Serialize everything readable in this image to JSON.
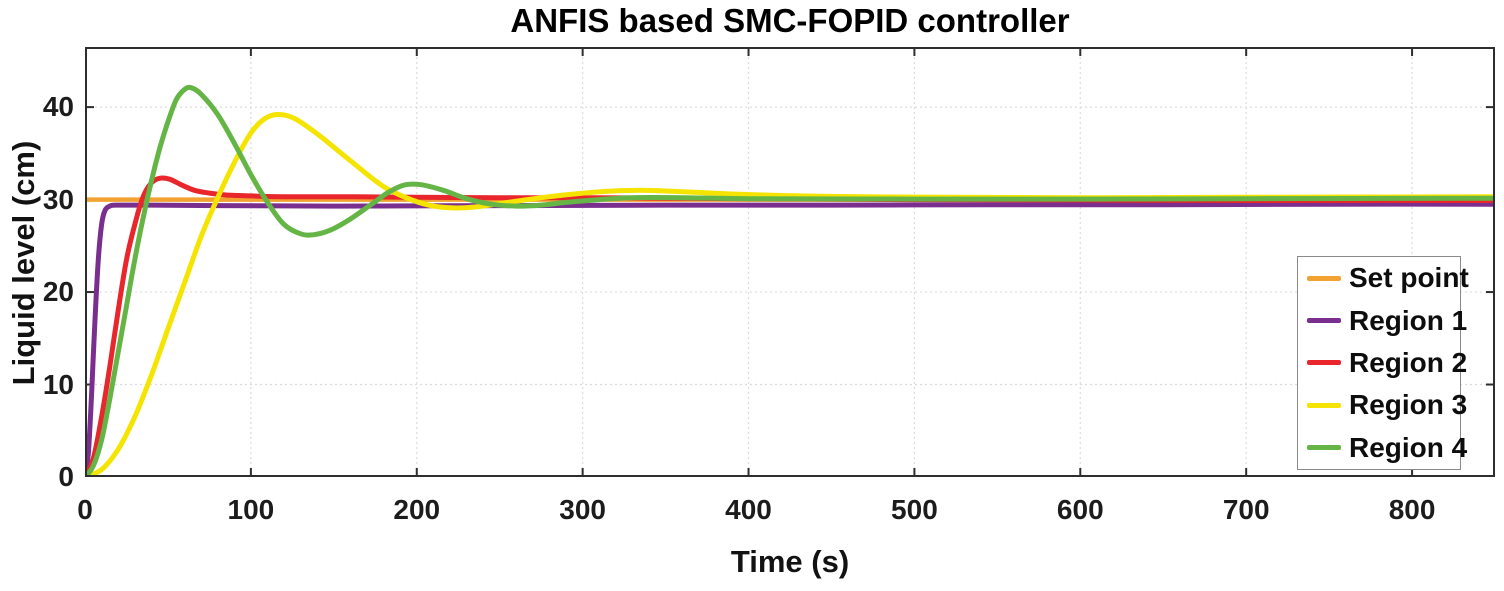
{
  "chart_data": {
    "type": "line",
    "title": "ANFIS based SMC-FOPID controller",
    "xlabel": "Time (s)",
    "ylabel": "Liquid level (cm)",
    "xlim": [
      0,
      850
    ],
    "ylim": [
      0,
      46.5
    ],
    "xticks": [
      0,
      100,
      200,
      300,
      400,
      500,
      600,
      700,
      800
    ],
    "yticks": [
      0,
      10,
      20,
      30,
      40
    ],
    "grid": true,
    "grid_color": "#dcdcdc",
    "axis_color": "#2e2e2e",
    "legend_position": "bottom-right",
    "series": [
      {
        "name": "Set point",
        "color": "#F2A230",
        "points": [
          [
            0,
            30
          ],
          [
            850,
            30
          ]
        ]
      },
      {
        "name": "Region 1",
        "color": "#7A2F8F",
        "points": [
          [
            0,
            0
          ],
          [
            2,
            2.5
          ],
          [
            4,
            9
          ],
          [
            6,
            17
          ],
          [
            8,
            23.5
          ],
          [
            10,
            27.3
          ],
          [
            12,
            28.8
          ],
          [
            15,
            29.3
          ],
          [
            20,
            29.4
          ],
          [
            40,
            29.4
          ],
          [
            80,
            29.35
          ],
          [
            150,
            29.3
          ],
          [
            250,
            29.35
          ],
          [
            350,
            29.4
          ],
          [
            450,
            29.4
          ],
          [
            550,
            29.45
          ],
          [
            650,
            29.45
          ],
          [
            750,
            29.5
          ],
          [
            850,
            29.5
          ]
        ]
      },
      {
        "name": "Region 2",
        "color": "#E8262B",
        "points": [
          [
            0,
            0
          ],
          [
            5,
            2
          ],
          [
            10,
            6.5
          ],
          [
            15,
            12
          ],
          [
            20,
            18
          ],
          [
            25,
            23.5
          ],
          [
            30,
            27.3
          ],
          [
            35,
            30.3
          ],
          [
            40,
            31.8
          ],
          [
            45,
            32.3
          ],
          [
            51,
            32.2
          ],
          [
            58,
            31.6
          ],
          [
            66,
            31.0
          ],
          [
            75,
            30.7
          ],
          [
            85,
            30.5
          ],
          [
            100,
            30.4
          ],
          [
            120,
            30.3
          ],
          [
            160,
            30.3
          ],
          [
            200,
            30.25
          ],
          [
            250,
            30.2
          ],
          [
            300,
            30.2
          ],
          [
            350,
            30.15
          ],
          [
            400,
            30.1
          ],
          [
            500,
            30.0
          ],
          [
            600,
            29.95
          ],
          [
            700,
            29.9
          ],
          [
            850,
            29.9
          ]
        ]
      },
      {
        "name": "Region 3",
        "color": "#F5E400",
        "points": [
          [
            0,
            0
          ],
          [
            10,
            0.8
          ],
          [
            20,
            3
          ],
          [
            30,
            6.5
          ],
          [
            40,
            11
          ],
          [
            50,
            16
          ],
          [
            60,
            21
          ],
          [
            70,
            26
          ],
          [
            80,
            30.2
          ],
          [
            90,
            34
          ],
          [
            100,
            37.2
          ],
          [
            108,
            38.7
          ],
          [
            116,
            39.2
          ],
          [
            126,
            38.8
          ],
          [
            140,
            37.1
          ],
          [
            160,
            34.2
          ],
          [
            180,
            31.4
          ],
          [
            198,
            29.9
          ],
          [
            210,
            29.3
          ],
          [
            222,
            29.1
          ],
          [
            235,
            29.2
          ],
          [
            255,
            29.7
          ],
          [
            275,
            30.2
          ],
          [
            295,
            30.6
          ],
          [
            315,
            30.9
          ],
          [
            335,
            31.0
          ],
          [
            360,
            30.85
          ],
          [
            390,
            30.6
          ],
          [
            430,
            30.4
          ],
          [
            470,
            30.3
          ],
          [
            520,
            30.25
          ],
          [
            600,
            30.2
          ],
          [
            700,
            30.25
          ],
          [
            850,
            30.3
          ]
        ]
      },
      {
        "name": "Region 4",
        "color": "#64B545",
        "points": [
          [
            0,
            0
          ],
          [
            5,
            1.2
          ],
          [
            10,
            4
          ],
          [
            15,
            8.5
          ],
          [
            20,
            13.5
          ],
          [
            25,
            18.5
          ],
          [
            30,
            23.5
          ],
          [
            35,
            28
          ],
          [
            40,
            32
          ],
          [
            45,
            35.5
          ],
          [
            50,
            38.4
          ],
          [
            55,
            40.8
          ],
          [
            60,
            41.9
          ],
          [
            64,
            42.1
          ],
          [
            70,
            41.4
          ],
          [
            80,
            39.2
          ],
          [
            90,
            36.1
          ],
          [
            100,
            32.7
          ],
          [
            110,
            29.7
          ],
          [
            120,
            27.3
          ],
          [
            130,
            26.3
          ],
          [
            138,
            26.2
          ],
          [
            148,
            26.7
          ],
          [
            160,
            27.9
          ],
          [
            172,
            29.4
          ],
          [
            183,
            30.8
          ],
          [
            193,
            31.6
          ],
          [
            203,
            31.6
          ],
          [
            216,
            31.0
          ],
          [
            230,
            30.1
          ],
          [
            245,
            29.5
          ],
          [
            260,
            29.3
          ],
          [
            275,
            29.4
          ],
          [
            290,
            29.7
          ],
          [
            310,
            30.0
          ],
          [
            330,
            30.2
          ],
          [
            360,
            30.2
          ],
          [
            400,
            30.1
          ],
          [
            500,
            30.05
          ],
          [
            600,
            30.05
          ],
          [
            700,
            30.1
          ],
          [
            850,
            30.15
          ]
        ]
      }
    ]
  }
}
